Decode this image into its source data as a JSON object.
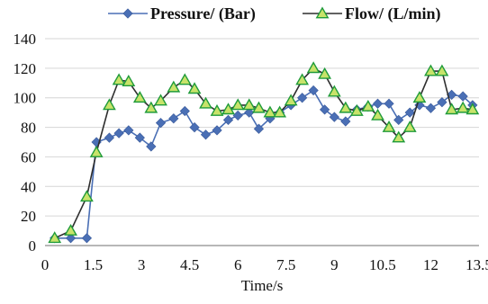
{
  "chart_data": {
    "type": "line",
    "title": "",
    "xlabel": "Time/s",
    "ylabel": "",
    "xlim": [
      0,
      13.5
    ],
    "ylim": [
      0,
      140
    ],
    "xticks": [
      "0",
      "1.5",
      "3",
      "4.5",
      "6",
      "7.5",
      "9",
      "10.5",
      "12",
      "13.5"
    ],
    "yticks": [
      "0",
      "20",
      "40",
      "60",
      "80",
      "100",
      "120",
      "140"
    ],
    "grid": "horizontal",
    "legend_position": "top",
    "series": [
      {
        "name": "Pressure/ (Bar)",
        "color": "#4a6fb5",
        "marker": "diamond",
        "x": [
          0.3,
          0.8,
          1.3,
          1.6,
          2.0,
          2.3,
          2.6,
          2.95,
          3.3,
          3.6,
          4.0,
          4.35,
          4.65,
          5.0,
          5.35,
          5.7,
          6.0,
          6.35,
          6.65,
          7.0,
          7.3,
          7.65,
          8.0,
          8.35,
          8.7,
          9.0,
          9.35,
          9.7,
          10.05,
          10.35,
          10.7,
          11.0,
          11.35,
          11.65,
          12.0,
          12.35,
          12.65,
          13.0,
          13.3
        ],
        "y": [
          5,
          5,
          5,
          70,
          73,
          76,
          78,
          73,
          67,
          83,
          86,
          91,
          80,
          75,
          78,
          85,
          88,
          90,
          79,
          86,
          90,
          95,
          100,
          105,
          92,
          87,
          84,
          92,
          94,
          96,
          96,
          85,
          90,
          95,
          93,
          97,
          102,
          101,
          95
        ]
      },
      {
        "name": "Flow/ (L/min)",
        "color": "#2e2e2e",
        "marker_fill": "#c8e36a",
        "marker_stroke": "#1f9b3a",
        "marker": "triangle",
        "x": [
          0.3,
          0.8,
          1.3,
          1.6,
          2.0,
          2.3,
          2.6,
          2.95,
          3.3,
          3.6,
          4.0,
          4.35,
          4.65,
          5.0,
          5.35,
          5.7,
          6.0,
          6.35,
          6.65,
          7.0,
          7.3,
          7.65,
          8.0,
          8.35,
          8.7,
          9.0,
          9.35,
          9.7,
          10.05,
          10.35,
          10.7,
          11.0,
          11.35,
          11.65,
          12.0,
          12.35,
          12.65,
          13.0,
          13.3
        ],
        "y": [
          5,
          10,
          33,
          63,
          95,
          112,
          111,
          100,
          93,
          98,
          107,
          112,
          106,
          96,
          91,
          92,
          95,
          95,
          93,
          90,
          90,
          98,
          112,
          120,
          116,
          104,
          93,
          91,
          94,
          88,
          80,
          73,
          80,
          100,
          118,
          118,
          92,
          93,
          92
        ]
      }
    ]
  }
}
